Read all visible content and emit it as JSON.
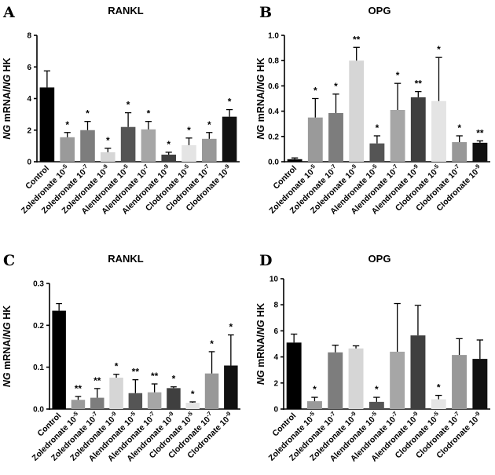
{
  "figure": {
    "bar_colors": [
      "#000000",
      "#9a9a9a",
      "#7d7d7d",
      "#d6d6d6",
      "#555555",
      "#a6a6a6",
      "#3f3f3f",
      "#e4e4e4",
      "#989898",
      "#111111"
    ]
  },
  "chart_data": [
    {
      "panel": "A",
      "type": "bar",
      "title": "RANKL",
      "ylabel": "NG mRNA/NG HK",
      "ylabel_parts": {
        "italic": "NG",
        "mid": " mRNA/",
        "italic2": "NG",
        "end": " HK"
      },
      "ylim": [
        0,
        8
      ],
      "yticks": [
        "0",
        "2",
        "4",
        "6",
        "8"
      ],
      "ytick_values": [
        0,
        2,
        4,
        6,
        8
      ],
      "categories": [
        {
          "name": "Control",
          "exp": ""
        },
        {
          "name": "Zoledronate 10",
          "exp": "-5"
        },
        {
          "name": "Zoledronate 10",
          "exp": "-7"
        },
        {
          "name": "Zoledronate 10",
          "exp": "-9"
        },
        {
          "name": "Alendronate 10",
          "exp": "-5"
        },
        {
          "name": "Alendronate 10",
          "exp": "-7"
        },
        {
          "name": "Alendronate 10",
          "exp": "-9"
        },
        {
          "name": "Clodronate 10",
          "exp": "-5"
        },
        {
          "name": "Clodronate 10",
          "exp": "-7"
        },
        {
          "name": "Clodronate 10",
          "exp": "-9"
        }
      ],
      "values": [
        4.7,
        1.55,
        2.0,
        0.6,
        2.2,
        2.05,
        0.45,
        1.05,
        1.45,
        2.85
      ],
      "errors": [
        1.05,
        0.3,
        0.55,
        0.25,
        0.9,
        0.5,
        0.15,
        0.45,
        0.4,
        0.45
      ],
      "significance": [
        "",
        "*",
        "*",
        "*",
        "*",
        "*",
        "*",
        "*",
        "*",
        "*"
      ]
    },
    {
      "panel": "B",
      "type": "bar",
      "title": "OPG",
      "ylabel": "NG mRNA/NG HK",
      "ylabel_parts": {
        "italic": "NG",
        "mid": " mRNA/",
        "italic2": "NG",
        "end": " HK"
      },
      "ylim": [
        0,
        1.0
      ],
      "yticks": [
        "0.0",
        "0.2",
        "0.4",
        "0.6",
        "0.8",
        "1.0"
      ],
      "ytick_values": [
        0,
        0.2,
        0.4,
        0.6,
        0.8,
        1.0
      ],
      "categories": [
        {
          "name": "Control",
          "exp": ""
        },
        {
          "name": "Zoledronate 10",
          "exp": "-5"
        },
        {
          "name": "Zoledronate 10",
          "exp": "-7"
        },
        {
          "name": "Zoledronate 10",
          "exp": "-9"
        },
        {
          "name": "Alendronate 10",
          "exp": "-5"
        },
        {
          "name": "Alendronate 10",
          "exp": "-7"
        },
        {
          "name": "Alendronate 10",
          "exp": "-9"
        },
        {
          "name": "Clodronate 10",
          "exp": "-5"
        },
        {
          "name": "Clodronate 10",
          "exp": "-7"
        },
        {
          "name": "Clodronate 10",
          "exp": "-9"
        }
      ],
      "values": [
        0.02,
        0.35,
        0.385,
        0.8,
        0.145,
        0.41,
        0.51,
        0.48,
        0.155,
        0.15
      ],
      "errors": [
        0.01,
        0.15,
        0.15,
        0.105,
        0.06,
        0.21,
        0.045,
        0.345,
        0.05,
        0.015
      ],
      "significance": [
        "",
        "*",
        "*",
        "**",
        "*",
        "*",
        "**",
        "*",
        "*",
        "**"
      ]
    },
    {
      "panel": "C",
      "type": "bar",
      "title": "RANKL",
      "ylabel": "NG mRNA/NG HK",
      "ylabel_parts": {
        "italic": "NG",
        "mid": " mRNA/",
        "italic2": "NG",
        "end": " HK"
      },
      "ylim": [
        0,
        0.3
      ],
      "yticks": [
        "0.0",
        "0.1",
        "0.2",
        "0.3"
      ],
      "ytick_values": [
        0,
        0.1,
        0.2,
        0.3
      ],
      "categories": [
        {
          "name": "Control",
          "exp": ""
        },
        {
          "name": "Zoledronate 10",
          "exp": "-5"
        },
        {
          "name": "Zoledronate 10",
          "exp": "-7"
        },
        {
          "name": "Zoledronate 10",
          "exp": "-9"
        },
        {
          "name": "Alendronate 10",
          "exp": "-5"
        },
        {
          "name": "Alendronate 10",
          "exp": "-7"
        },
        {
          "name": "Alendronate 10",
          "exp": "-9"
        },
        {
          "name": "Clodronate 10",
          "exp": "-5"
        },
        {
          "name": "Clodronate 10",
          "exp": "-7"
        },
        {
          "name": "Clodronate 10",
          "exp": "-9"
        }
      ],
      "values": [
        0.235,
        0.022,
        0.027,
        0.075,
        0.038,
        0.04,
        0.05,
        0.015,
        0.085,
        0.104
      ],
      "errors": [
        0.017,
        0.008,
        0.022,
        0.008,
        0.032,
        0.02,
        0.003,
        0.002,
        0.052,
        0.073
      ],
      "significance": [
        "",
        "**",
        "**",
        "*",
        "**",
        "**",
        "*",
        "*",
        "*",
        "*"
      ]
    },
    {
      "panel": "D",
      "type": "bar",
      "title": "OPG",
      "ylabel": "NG mRNA/NG HK",
      "ylabel_parts": {
        "italic": "NG",
        "mid": " mRNA/",
        "italic2": "NG",
        "end": " HK"
      },
      "ylim": [
        0,
        10
      ],
      "yticks": [
        "0",
        "2",
        "4",
        "6",
        "8",
        "10"
      ],
      "ytick_values": [
        0,
        2,
        4,
        6,
        8,
        10
      ],
      "categories": [
        {
          "name": "Control",
          "exp": ""
        },
        {
          "name": "Zoledronate 10",
          "exp": "-5"
        },
        {
          "name": "Zoledronate 10",
          "exp": "-7"
        },
        {
          "name": "Zoledronate 10",
          "exp": "-9"
        },
        {
          "name": "Alendronate 10",
          "exp": "-5"
        },
        {
          "name": "Alendronate 10",
          "exp": "-7"
        },
        {
          "name": "Alendronate 10",
          "exp": "-9"
        },
        {
          "name": "Clodronate 10",
          "exp": "-5"
        },
        {
          "name": "Clodronate 10",
          "exp": "-7"
        },
        {
          "name": "Clodronate 10",
          "exp": "-9"
        }
      ],
      "values": [
        5.1,
        0.6,
        4.35,
        4.65,
        0.55,
        4.4,
        5.65,
        0.75,
        4.15,
        3.85
      ],
      "errors": [
        0.65,
        0.3,
        0.55,
        0.2,
        0.35,
        3.7,
        2.3,
        0.3,
        1.25,
        1.45
      ],
      "significance": [
        "",
        "*",
        "",
        "",
        "*",
        "",
        "",
        "*",
        "",
        ""
      ]
    }
  ]
}
